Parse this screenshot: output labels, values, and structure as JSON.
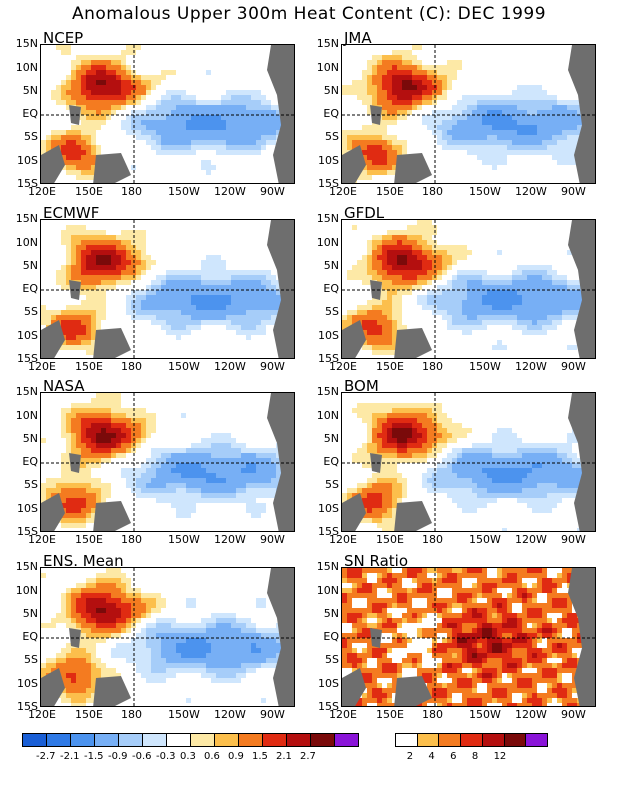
{
  "title": "Anomalous Upper 300m Heat Content (C): DEC 1999",
  "panels": [
    {
      "name": "NCEP"
    },
    {
      "name": "JMA"
    },
    {
      "name": "ECMWF"
    },
    {
      "name": "GFDL"
    },
    {
      "name": "NASA"
    },
    {
      "name": "BOM"
    },
    {
      "name": "ENS. Mean"
    },
    {
      "name": "SN Ratio"
    }
  ],
  "lat_labels": [
    "15N",
    "10N",
    "5N",
    "EQ",
    "5S",
    "10S",
    "15S"
  ],
  "lon_labels": [
    "120E",
    "150E",
    "180",
    "150W",
    "120W",
    "90W"
  ],
  "anomaly_colorbar": {
    "labels": [
      "-2.7",
      "-2.1",
      "-1.5",
      "-0.9",
      "-0.6",
      "-0.3",
      "0.3",
      "0.6",
      "0.9",
      "1.5",
      "2.1",
      "2.7"
    ],
    "colors": [
      "#1a5fd6",
      "#2f7ae6",
      "#4c93ee",
      "#77aff5",
      "#a6cdf9",
      "#cfe6fd",
      "#ffffff",
      "#fde9a6",
      "#fcbf4c",
      "#f47b20",
      "#e02b12",
      "#b40f0f",
      "#7a0a0a",
      "#8a14d8"
    ]
  },
  "snr_colorbar": {
    "labels": [
      "2",
      "4",
      "6",
      "8",
      "12"
    ],
    "colors": [
      "#ffffff",
      "#fcbf4c",
      "#f47b20",
      "#e02b12",
      "#b40f0f",
      "#7a0a0a",
      "#8a14d8"
    ]
  },
  "land_color": "#6e6e6e"
}
